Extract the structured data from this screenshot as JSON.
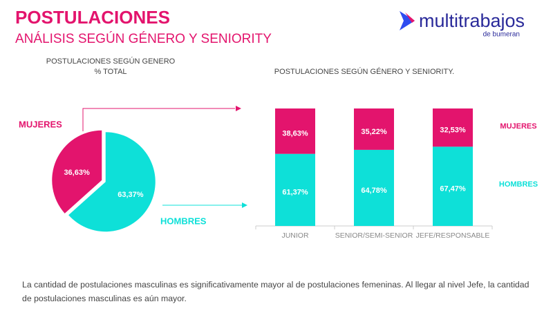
{
  "header": {
    "title": "POSTULACIONES",
    "subtitle": "ANÁLISIS SEGÚN GÉNERO Y SENIORITY"
  },
  "logo": {
    "name": "multitrabajos",
    "tagline": "de bumeran"
  },
  "chart_data": [
    {
      "type": "pie",
      "title": "POSTULACIONES SEGÚN GENERO",
      "subtitle": "% TOTAL",
      "categories": [
        "MUJERES",
        "HOMBRES"
      ],
      "values": [
        36.63,
        63.37
      ],
      "value_labels": [
        "36,63%",
        "63,37%"
      ],
      "colors": [
        "#e3146d",
        "#0ee0d8"
      ]
    },
    {
      "type": "stacked_bar",
      "title": "POSTULACIONES SEGÚN GÉNERO Y SENIORITY.",
      "categories": [
        "JUNIOR",
        "SENIOR/SEMI-SENIOR",
        "JEFE/RESPONSABLE"
      ],
      "series": [
        {
          "name": "MUJERES",
          "color": "#e3146d",
          "values": [
            38.63,
            35.22,
            32.53
          ],
          "value_labels": [
            "38,63%",
            "35,22%",
            "32,53%"
          ]
        },
        {
          "name": "HOMBRES",
          "color": "#0ee0d8",
          "values": [
            61.37,
            64.78,
            67.47
          ],
          "value_labels": [
            "61,37%",
            "64,78%",
            "67,47%"
          ]
        }
      ]
    }
  ],
  "footer": "La cantidad de postulaciones masculinas es significativamente mayor al de postulaciones femeninas. Al llegar al nivel Jefe, la cantidad de postulaciones masculinas es aún mayor."
}
